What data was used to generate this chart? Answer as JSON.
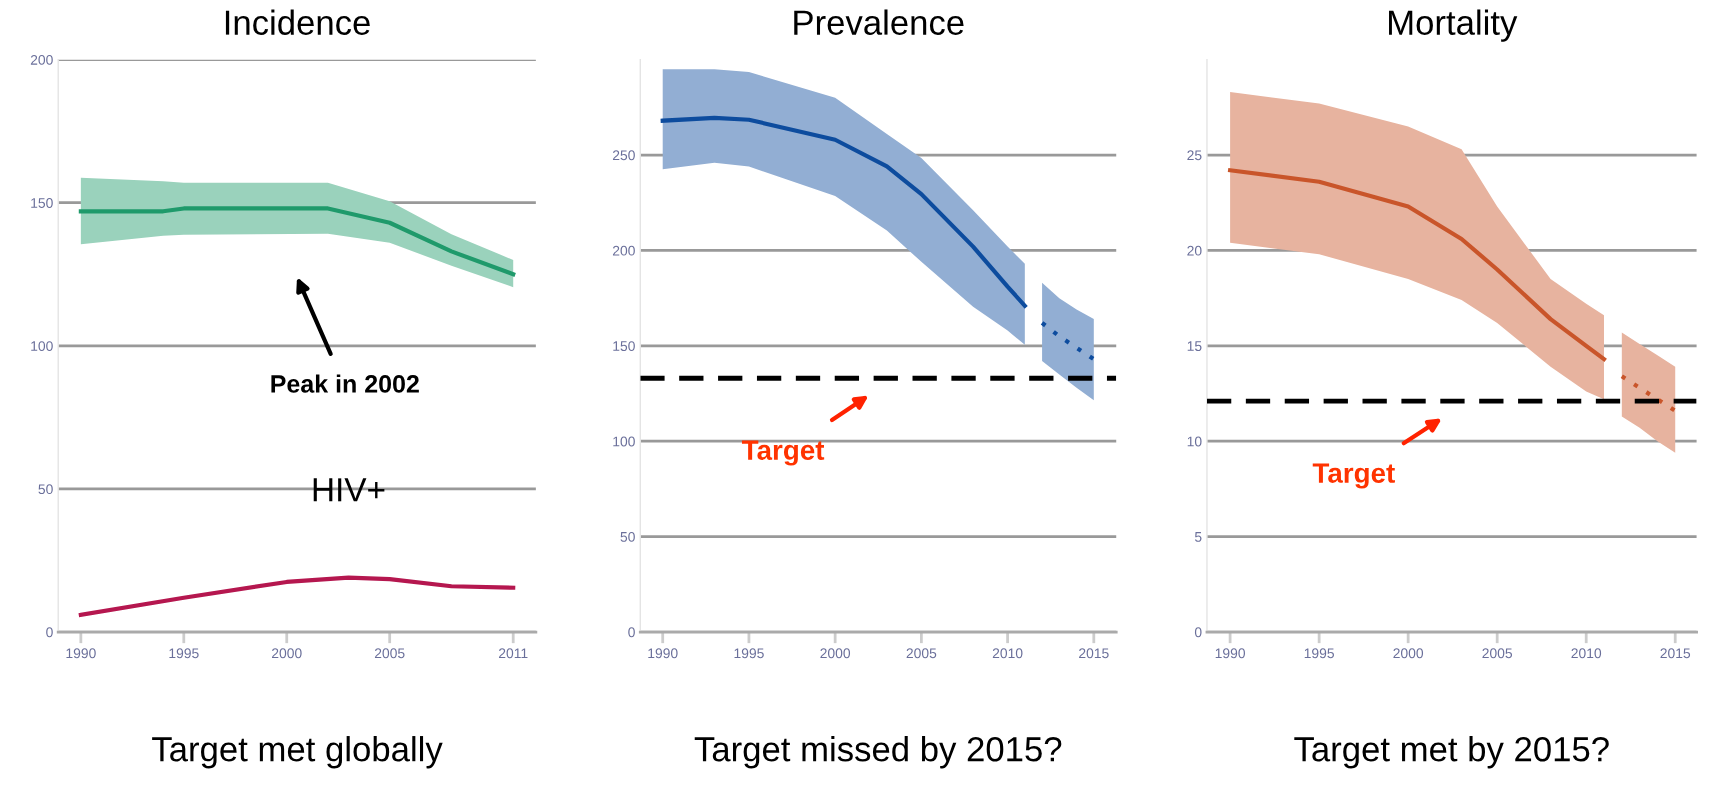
{
  "chart_data": [
    {
      "type": "line",
      "title": "Incidence",
      "xlim": [
        1988.9,
        2012.1
      ],
      "xticks": [
        1990,
        1995,
        2000,
        2005,
        2011
      ],
      "ylim": [
        0,
        200
      ],
      "yticks": [
        0,
        50,
        100,
        150,
        200
      ],
      "grid": "y",
      "marker": "none",
      "series": [
        {
          "color": "#1f9a6b",
          "x": [
            1990,
            1994,
            1995,
            2002,
            2005,
            2008,
            2011
          ],
          "values": [
            147,
            147,
            148,
            148,
            143,
            133,
            125
          ],
          "upper": [
            158.7,
            157.5,
            157,
            157,
            150.5,
            139,
            130
          ],
          "lower": [
            135.5,
            138.5,
            138.8,
            139.2,
            136,
            128,
            120.5
          ]
        },
        {
          "name": "HIV+",
          "color": "#b5174f",
          "x": [
            1990,
            1995,
            2000,
            2003,
            2005,
            2008,
            2011
          ],
          "values": [
            6,
            12,
            17.5,
            19,
            18.5,
            16,
            15.5
          ]
        }
      ],
      "annotations": [
        "Peak in 2002",
        "Target met globally"
      ]
    },
    {
      "type": "line",
      "title": "Prevalence",
      "xlim": [
        1988.7,
        2016.3
      ],
      "xticks": [
        1990,
        1995,
        2000,
        2005,
        2010,
        2015
      ],
      "ylim": [
        0,
        300
      ],
      "yticks": [
        0,
        50,
        100,
        150,
        200,
        250
      ],
      "grid": "y",
      "marker": "none",
      "series": [
        {
          "color": "#0d4c9e",
          "x": [
            1990,
            1993,
            1995,
            2000,
            2003,
            2005,
            2008,
            2010,
            2011
          ],
          "values": [
            268,
            269.5,
            268.5,
            258,
            244,
            229.5,
            202,
            181,
            171
          ],
          "upper": [
            295,
            295,
            293.5,
            280,
            261,
            248.5,
            221,
            202,
            193
          ],
          "lower": [
            242.5,
            246,
            244,
            228.5,
            210.5,
            194,
            170.5,
            158,
            150.5
          ]
        },
        {
          "color": "#0d4c9e",
          "line_style": "dotted",
          "x": [
            2012,
            2013,
            2014,
            2015
          ],
          "values": [
            162,
            155,
            149,
            143
          ],
          "upper": [
            183,
            175,
            169,
            164
          ],
          "lower": [
            142,
            135,
            128,
            121.5
          ]
        }
      ],
      "ref_lines": [
        {
          "axis": "y",
          "value": 133,
          "label": "Target",
          "color": "#000000",
          "line_style": "dashed"
        }
      ],
      "annotations": [
        "Target missed by 2015?"
      ]
    },
    {
      "type": "line",
      "title": "Mortality",
      "xlim": [
        1988.7,
        2016.2
      ],
      "xticks": [
        1990,
        1995,
        2000,
        2005,
        2010,
        2015
      ],
      "ylim": [
        0,
        30
      ],
      "yticks": [
        0,
        5,
        10,
        15,
        20,
        25
      ],
      "grid": "y",
      "marker": "none",
      "series": [
        {
          "color": "#c9552a",
          "x": [
            1990,
            1995,
            2000,
            2003,
            2005,
            2008,
            2010,
            2011
          ],
          "values": [
            24.2,
            23.6,
            22.3,
            20.6,
            19,
            16.4,
            15,
            14.3
          ],
          "upper": [
            28.3,
            27.7,
            26.5,
            25.3,
            22.3,
            18.5,
            17.2,
            16.6
          ],
          "lower": [
            20.4,
            19.8,
            18.5,
            17.4,
            16.2,
            13.9,
            12.6,
            12.2
          ]
        },
        {
          "color": "#c9552a",
          "line_style": "dotted",
          "x": [
            2012,
            2013,
            2014,
            2015
          ],
          "values": [
            13.4,
            12.8,
            12.2,
            11.6
          ],
          "upper": [
            15.7,
            15.1,
            14.5,
            13.9
          ],
          "lower": [
            11.3,
            10.7,
            10.0,
            9.4
          ]
        }
      ],
      "ref_lines": [
        {
          "axis": "y",
          "value": 12.1,
          "label": "Target",
          "color": "#000000",
          "line_style": "dashed"
        }
      ],
      "annotations": [
        "Target met by 2015?"
      ]
    }
  ]
}
